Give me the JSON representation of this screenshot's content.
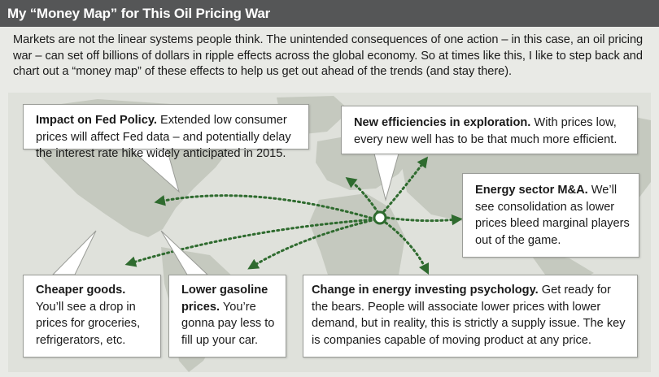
{
  "header": {
    "title": "My “Money Map” for This Oil Pricing War"
  },
  "intro": {
    "text": "Markets are not the linear systems people think. The unintended consequences of one action – in this case, an oil pricing war – can set off billions of dollars in ripple effects across the global economy. So at times like this, I like to step back and chart out a “money map” of these effects to help us get out ahead of the trends (and stay there)."
  },
  "colors": {
    "header_bg": "#555657",
    "land": "#c3c7bc",
    "arrow": "#2f6b2f",
    "box_border": "#9a9c97"
  },
  "callouts": {
    "fed": {
      "title": "Impact on Fed Policy.",
      "body": " Extended low consumer prices will affect Fed data – and potentially delay the interest rate hike widely anticipated in 2015."
    },
    "efficiency": {
      "title": "New efficiencies in exploration.",
      "body": " With prices low, every new well has to be that much more efficient."
    },
    "ma": {
      "title": "Energy sector M&A.",
      "body": " We’ll see consolidation as lower prices bleed marginal players out of the game."
    },
    "cheaper": {
      "title": "Cheaper goods.",
      "body": " You’ll see a drop in prices for groceries, refrigerators, etc."
    },
    "gasoline": {
      "title": "Lower gasoline prices.",
      "body": " You’re gonna pay less to fill up your car."
    },
    "psychology": {
      "title": "Change in energy investing psychology.",
      "body": " Get ready for the bears. People will associate lower prices with lower demand, but in reality, this is strictly a supply issue. The key is companies capable of moving product at any price."
    }
  }
}
